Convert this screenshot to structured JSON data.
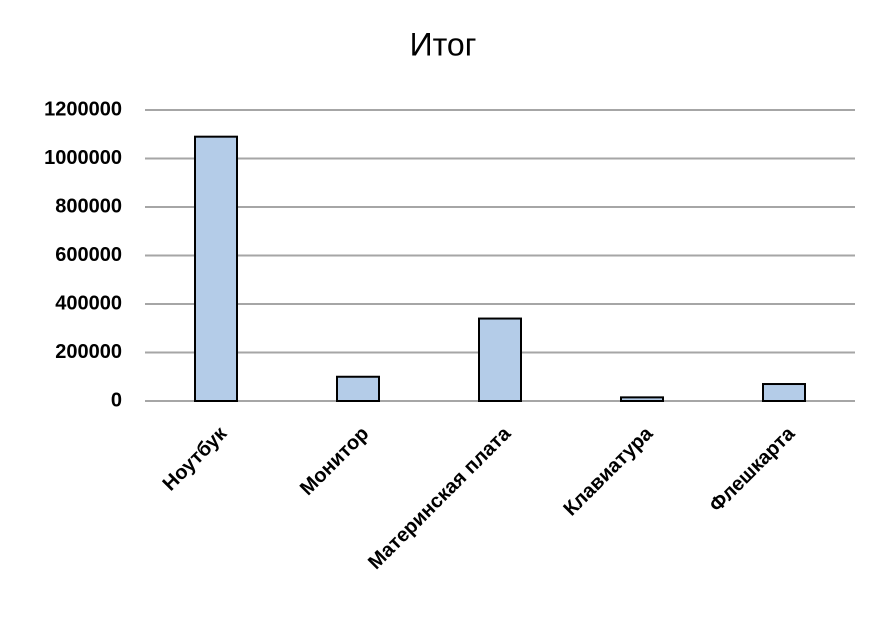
{
  "chart_data": {
    "type": "bar",
    "title": "Итог",
    "categories": [
      "Ноутбук",
      "Монитор",
      "Материнская плата",
      "Клавиатура",
      "Флешкарта"
    ],
    "values": [
      1090000,
      100000,
      340000,
      15000,
      70000
    ],
    "color": "#b4cce8",
    "ylim": [
      0,
      1200000
    ],
    "yticks": [
      0,
      200000,
      400000,
      600000,
      800000,
      1000000,
      1200000
    ],
    "grid": true
  }
}
